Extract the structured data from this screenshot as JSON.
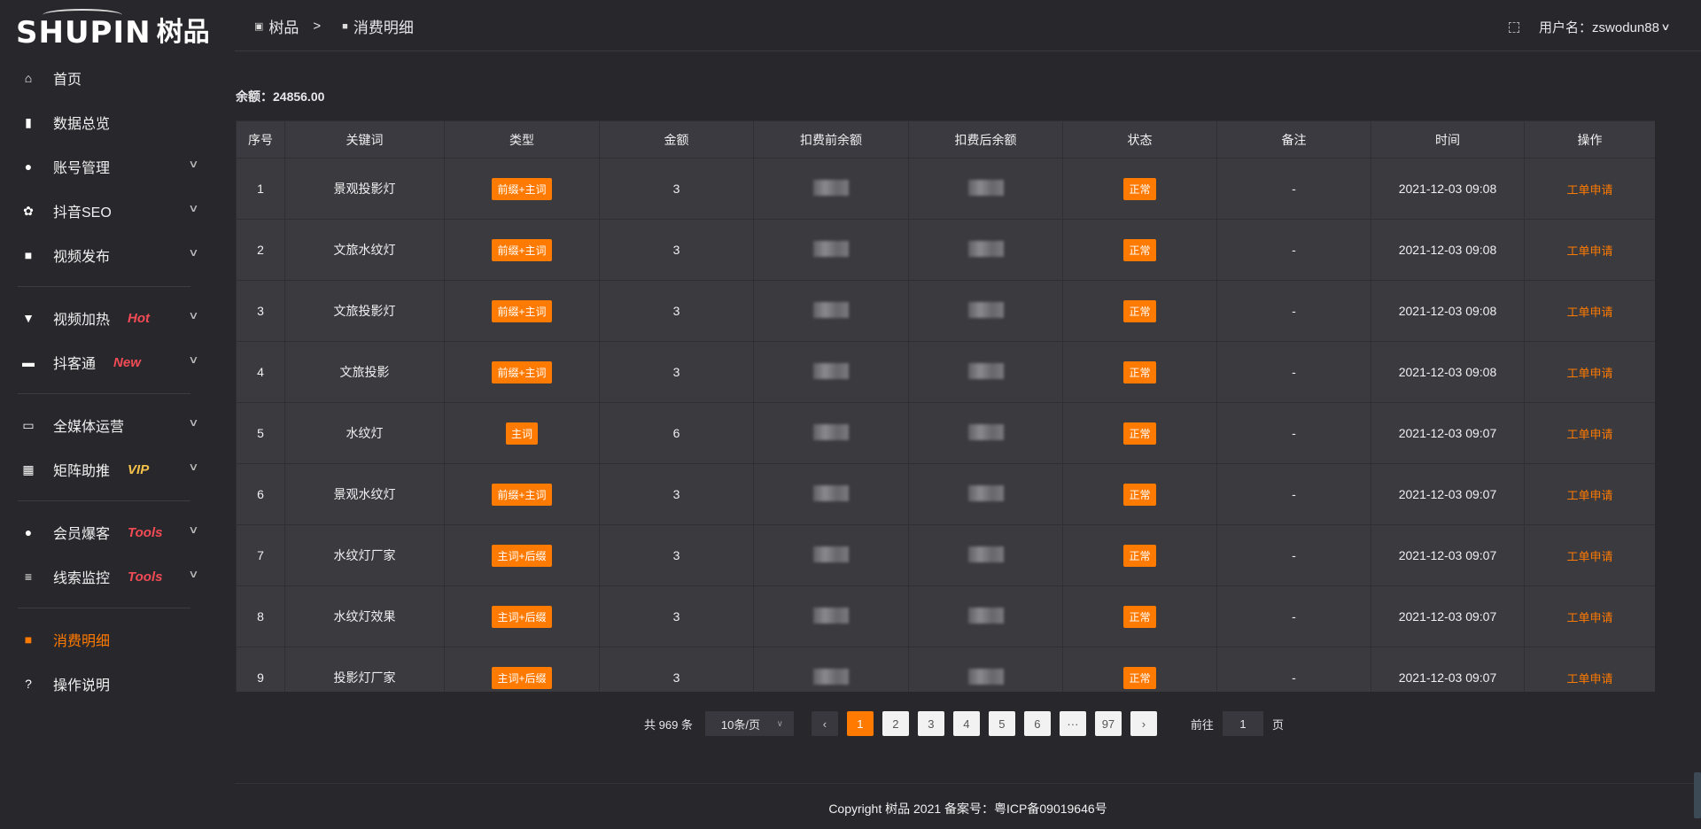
{
  "logo": {
    "en": "SHUPIN",
    "cn": "树品"
  },
  "sidebar": {
    "items": [
      {
        "label": "首页",
        "icon": "home-icon",
        "glyph": "⌂"
      },
      {
        "label": "数据总览",
        "icon": "bar-chart-icon",
        "glyph": "▮"
      },
      {
        "label": "账号管理",
        "icon": "user-icon",
        "glyph": "●",
        "chevron": true
      },
      {
        "label": "抖音SEO",
        "icon": "gear-icon",
        "glyph": "✿",
        "chevron": true
      },
      {
        "label": "视频发布",
        "icon": "video-camera-icon",
        "glyph": "■",
        "chevron": true
      },
      {
        "label": "视频加热",
        "icon": "billboard-icon",
        "glyph": "▼",
        "tag": "Hot",
        "chevron": true
      },
      {
        "label": "抖客通",
        "icon": "chat-icon",
        "glyph": "▬",
        "tag": "New",
        "chevron": true
      },
      {
        "label": "全媒体运营",
        "icon": "monitor-icon",
        "glyph": "▭",
        "chevron": true
      },
      {
        "label": "矩阵助推",
        "icon": "grid-icon",
        "glyph": "▦",
        "tag": "VIP",
        "chevron": true
      },
      {
        "label": "会员爆客",
        "icon": "user-icon",
        "glyph": "●",
        "tag": "Tools",
        "chevron": true
      },
      {
        "label": "线索监控",
        "icon": "sliders-icon",
        "glyph": "≡",
        "tag": "Tools",
        "chevron": true
      },
      {
        "label": "消费明细",
        "icon": "wallet-icon",
        "glyph": "■",
        "active": true
      },
      {
        "label": "操作说明",
        "icon": "help-icon",
        "glyph": "?"
      }
    ]
  },
  "header": {
    "breadcrumb": [
      "树品",
      "消费明细"
    ],
    "breadcrumb_sep": ">",
    "user_label": "用户名：zswodun88"
  },
  "balance": "余额：24856.00",
  "table": {
    "columns": [
      "序号",
      "关键词",
      "类型",
      "金额",
      "扣费前余额",
      "扣费后余额",
      "状态",
      "备注",
      "时间",
      "操作"
    ],
    "rows": [
      {
        "no": "1",
        "keyword": "景观投影灯",
        "type": "前缀+主词",
        "amount": "3",
        "status": "正常",
        "remark": "-",
        "time": "2021-12-03 09:08",
        "action": "工单申请"
      },
      {
        "no": "2",
        "keyword": "文旅水纹灯",
        "type": "前缀+主词",
        "amount": "3",
        "status": "正常",
        "remark": "-",
        "time": "2021-12-03 09:08",
        "action": "工单申请"
      },
      {
        "no": "3",
        "keyword": "文旅投影灯",
        "type": "前缀+主词",
        "amount": "3",
        "status": "正常",
        "remark": "-",
        "time": "2021-12-03 09:08",
        "action": "工单申请"
      },
      {
        "no": "4",
        "keyword": "文旅投影",
        "type": "前缀+主词",
        "amount": "3",
        "status": "正常",
        "remark": "-",
        "time": "2021-12-03 09:08",
        "action": "工单申请"
      },
      {
        "no": "5",
        "keyword": "水纹灯",
        "type": "主词",
        "amount": "6",
        "status": "正常",
        "remark": "-",
        "time": "2021-12-03 09:07",
        "action": "工单申请"
      },
      {
        "no": "6",
        "keyword": "景观水纹灯",
        "type": "前缀+主词",
        "amount": "3",
        "status": "正常",
        "remark": "-",
        "time": "2021-12-03 09:07",
        "action": "工单申请"
      },
      {
        "no": "7",
        "keyword": "水纹灯厂家",
        "type": "主词+后缀",
        "amount": "3",
        "status": "正常",
        "remark": "-",
        "time": "2021-12-03 09:07",
        "action": "工单申请"
      },
      {
        "no": "8",
        "keyword": "水纹灯效果",
        "type": "主词+后缀",
        "amount": "3",
        "status": "正常",
        "remark": "-",
        "time": "2021-12-03 09:07",
        "action": "工单申请"
      },
      {
        "no": "9",
        "keyword": "投影灯厂家",
        "type": "主词+后缀",
        "amount": "3",
        "status": "正常",
        "remark": "-",
        "time": "2021-12-03 09:07",
        "action": "工单申请"
      }
    ]
  },
  "pagination": {
    "total": "共 969 条",
    "page_size": "10条/页",
    "pages": [
      "1",
      "2",
      "3",
      "4",
      "5",
      "6",
      "···",
      "97"
    ],
    "current": "1",
    "goto_label": "前往",
    "goto_value": "1",
    "goto_suffix": "页"
  },
  "footer": "Copyright 树品 2021 备案号：粤ICP备09019646号",
  "colors": {
    "accent": "#ff7a00",
    "tag_red": "#f24b55",
    "tag_vip": "#f6c24a",
    "background": "#28282c",
    "table": "#3a3a3f"
  }
}
